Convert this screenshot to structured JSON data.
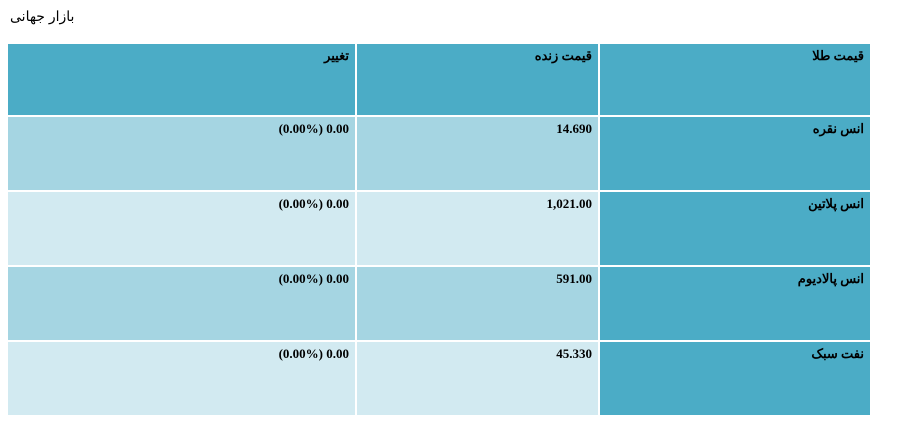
{
  "header": {
    "title": "بازار جهانی"
  },
  "table": {
    "columns": [
      "قیمت طلا",
      "قیمت زنده",
      "تغییر"
    ],
    "rows": [
      [
        "انس نقره",
        "14.690",
        "(0.00%) 0.00"
      ],
      [
        "انس پلاتین",
        "1,021.00",
        "(0.00%) 0.00"
      ],
      [
        "انس پالادیوم",
        "591.00",
        "(0.00%) 0.00"
      ],
      [
        "نفت سبک",
        "45.330",
        "(0.00%) 0.00"
      ]
    ]
  }
}
